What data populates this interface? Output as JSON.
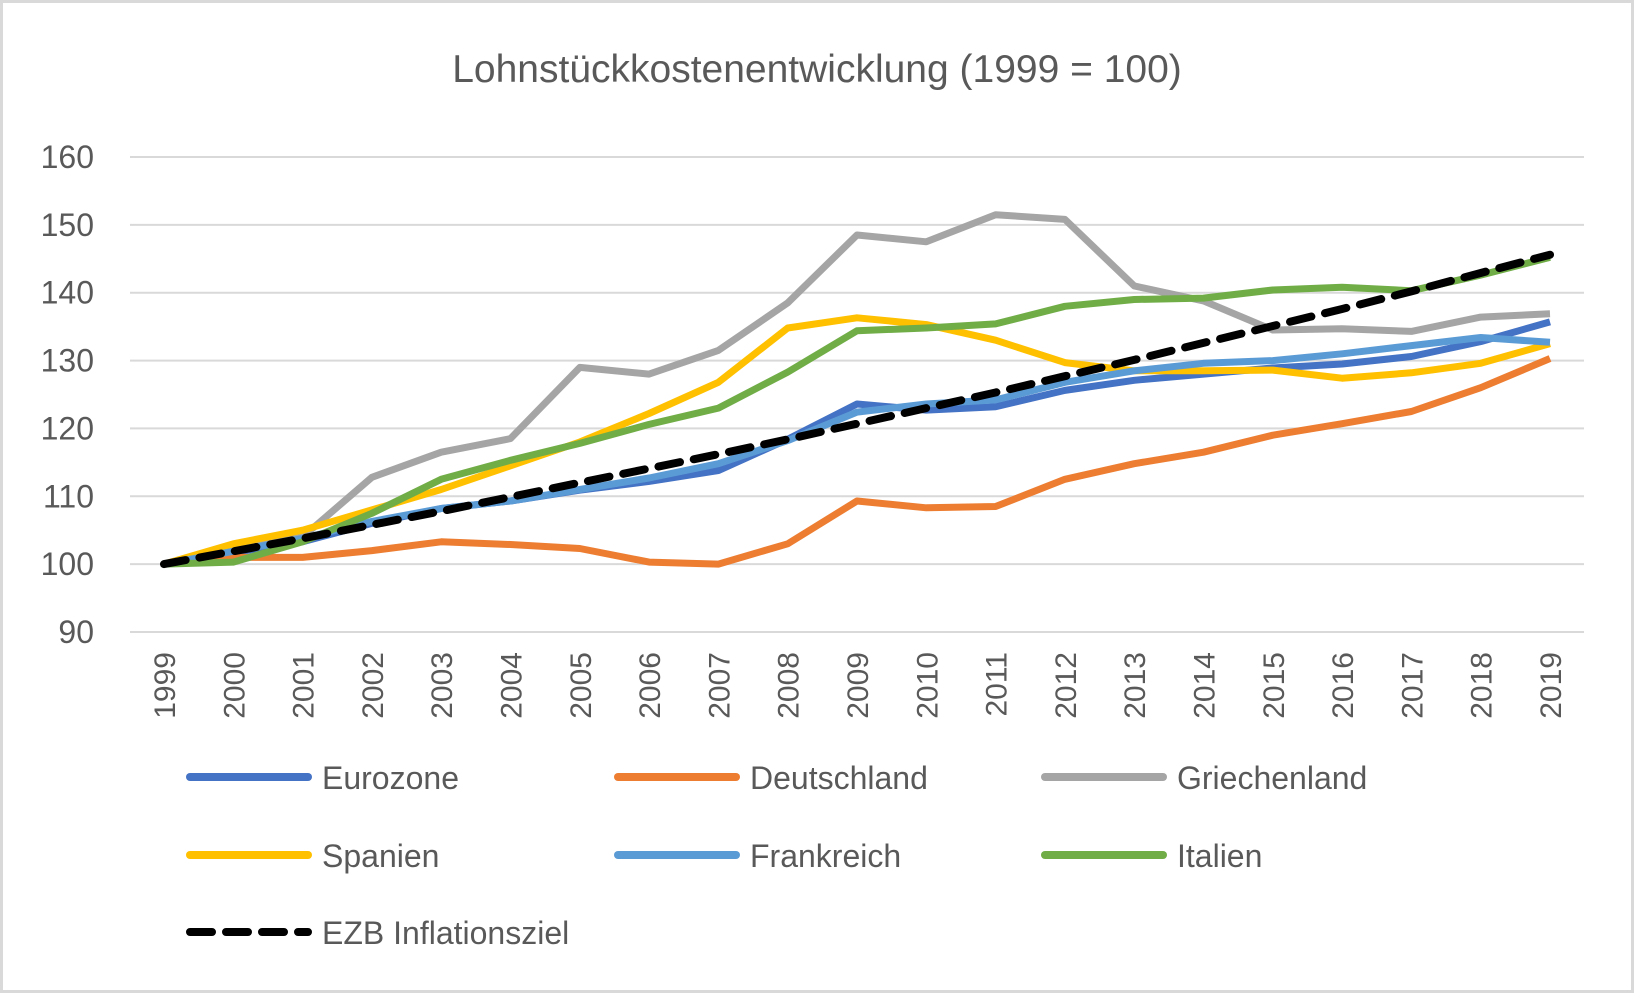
{
  "chart_data": {
    "type": "line",
    "title": "Lohnstückkostenentwicklung (1999 = 100)",
    "xlabel": "",
    "ylabel": "",
    "ylim": [
      90,
      160
    ],
    "yticks": [
      90,
      100,
      110,
      120,
      130,
      140,
      150,
      160
    ],
    "grid": true,
    "legend_position": "bottom",
    "categories": [
      "1999",
      "2000",
      "2001",
      "2002",
      "2003",
      "2004",
      "2005",
      "2006",
      "2007",
      "2008",
      "2009",
      "2010",
      "2011",
      "2012",
      "2013",
      "2014",
      "2015",
      "2016",
      "2017",
      "2018",
      "2019"
    ],
    "series": [
      {
        "name": "Eurozone",
        "color": "#4472c4",
        "dashed": false,
        "values": [
          100,
          101.7,
          103.3,
          106.0,
          108.2,
          109.3,
          110.9,
          112.2,
          113.8,
          118.4,
          123.6,
          122.7,
          123.2,
          125.6,
          127.1,
          128.0,
          128.9,
          129.5,
          130.6,
          132.8,
          135.7
        ]
      },
      {
        "name": "Deutschland",
        "color": "#ed7d31",
        "dashed": false,
        "values": [
          100,
          101.0,
          101.0,
          102.0,
          103.3,
          102.9,
          102.3,
          100.3,
          100.0,
          103.0,
          109.3,
          108.3,
          108.5,
          112.5,
          114.8,
          116.5,
          119.0,
          120.7,
          122.5,
          126.0,
          130.3
        ]
      },
      {
        "name": "Griechenland",
        "color": "#a5a5a5",
        "dashed": false,
        "values": [
          100,
          102.0,
          104.0,
          112.8,
          116.5,
          118.5,
          129.0,
          128.0,
          131.5,
          138.5,
          148.5,
          147.5,
          151.5,
          150.8,
          141.0,
          138.8,
          134.5,
          134.7,
          134.3,
          136.4,
          136.9
        ]
      },
      {
        "name": "Spanien",
        "color": "#ffc000",
        "dashed": false,
        "values": [
          100,
          103.0,
          105.0,
          108.0,
          111.0,
          114.5,
          118.0,
          122.2,
          126.8,
          134.8,
          136.3,
          135.3,
          133.0,
          129.7,
          128.5,
          128.5,
          128.6,
          127.4,
          128.2,
          129.6,
          132.5
        ]
      },
      {
        "name": "Frankreich",
        "color": "#5b9bd5",
        "dashed": false,
        "values": [
          100,
          101.9,
          103.8,
          106.3,
          108.2,
          109.3,
          111.0,
          112.7,
          114.8,
          118.2,
          122.4,
          123.6,
          124.2,
          126.8,
          128.5,
          129.6,
          130.0,
          131.0,
          132.2,
          133.4,
          132.7
        ]
      },
      {
        "name": "Italien",
        "color": "#70ad47",
        "dashed": false,
        "values": [
          100,
          100.3,
          103.3,
          107.5,
          112.5,
          115.3,
          117.8,
          120.6,
          123.0,
          128.3,
          134.4,
          134.8,
          135.4,
          138.0,
          139.0,
          139.2,
          140.4,
          140.8,
          140.3,
          142.6,
          145.2
        ]
      },
      {
        "name": "EZB Inflationsziel",
        "color": "#000000",
        "dashed": true,
        "values": [
          100,
          101.9,
          103.8,
          105.8,
          107.8,
          109.9,
          112.0,
          114.1,
          116.2,
          118.4,
          120.7,
          123.0,
          125.3,
          127.7,
          130.1,
          132.6,
          135.1,
          137.6,
          140.2,
          142.9,
          145.6
        ]
      }
    ]
  }
}
